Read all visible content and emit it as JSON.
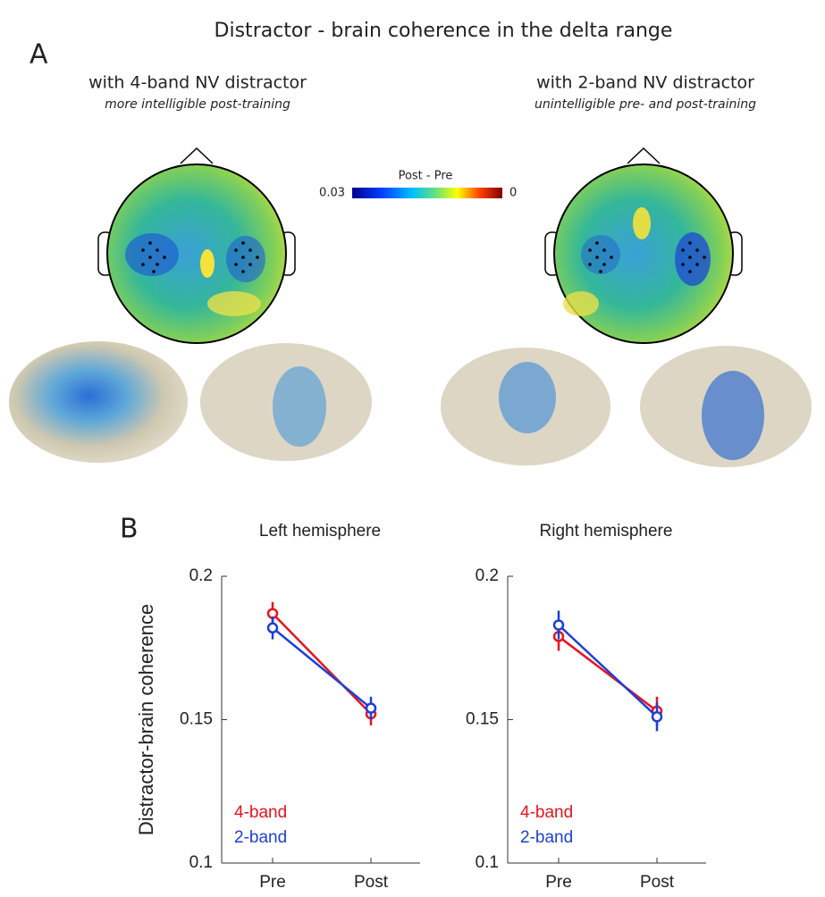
{
  "title": "Distractor - brain coherence in the delta range",
  "panel_a": {
    "label": "A",
    "left": {
      "title": "with 4-band NV distractor",
      "subtitle": "more intelligible post-training"
    },
    "right": {
      "title": "with 2-band NV distractor",
      "subtitle": "unintelligible pre- and post-training"
    },
    "colorbar": {
      "label": "Post - Pre",
      "min_label": "0.03",
      "max_label": "0"
    }
  },
  "panel_b_label": "B",
  "chart_data": [
    {
      "type": "line",
      "title": "Left hemisphere",
      "ylabel": "Distractor-brain coherence",
      "categories": [
        "Pre",
        "Post"
      ],
      "series": [
        {
          "name": "4-band",
          "color": "#e8131c",
          "values": [
            0.187,
            0.152
          ],
          "errors": [
            0.004,
            0.004
          ]
        },
        {
          "name": "2-band",
          "color": "#1d3fd6",
          "values": [
            0.182,
            0.154
          ],
          "errors": [
            0.004,
            0.004
          ]
        }
      ],
      "ylim": [
        0.1,
        0.2
      ],
      "yticks": [
        0.1,
        0.15,
        0.2
      ]
    },
    {
      "type": "line",
      "title": "Right hemisphere",
      "categories": [
        "Pre",
        "Post"
      ],
      "series": [
        {
          "name": "4-band",
          "color": "#e8131c",
          "values": [
            0.179,
            0.153
          ],
          "errors": [
            0.005,
            0.005
          ]
        },
        {
          "name": "2-band",
          "color": "#1d3fd6",
          "values": [
            0.183,
            0.151
          ],
          "errors": [
            0.005,
            0.005
          ]
        }
      ],
      "ylim": [
        0.1,
        0.2
      ],
      "yticks": [
        0.1,
        0.15,
        0.2
      ]
    }
  ]
}
